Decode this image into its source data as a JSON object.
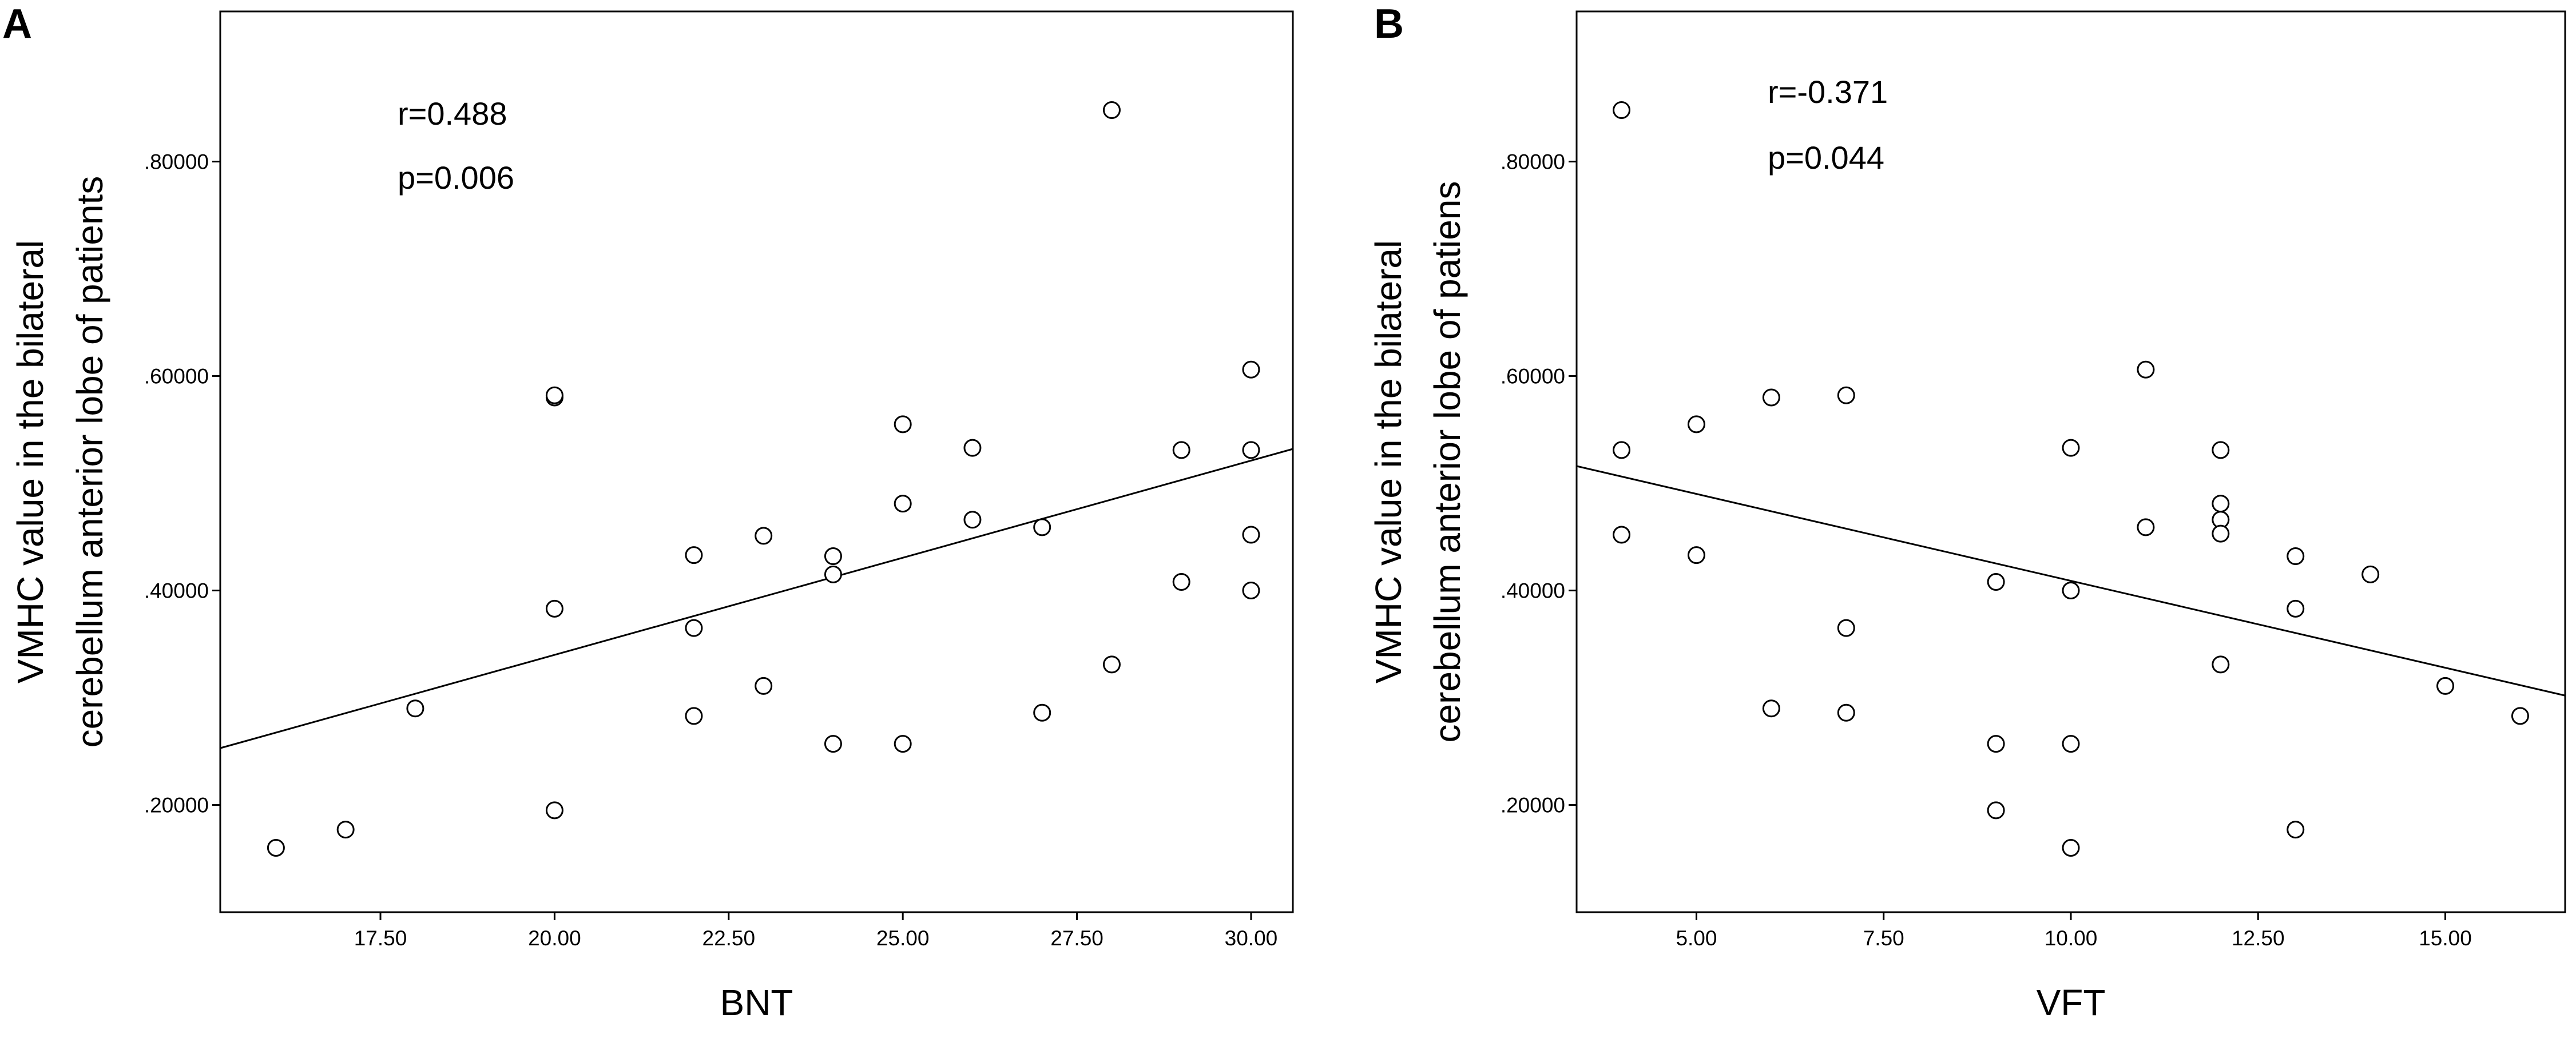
{
  "chart_data": [
    {
      "type": "scatter",
      "panel_label": "A",
      "xlabel": "BNT",
      "ylabel_lines": [
        "VMHC value in the bilateral",
        "cerebellum anterior lobe of patients"
      ],
      "xlim": [
        15.2,
        30.6
      ],
      "ylim": [
        0.1,
        0.94
      ],
      "xticks": [
        17.5,
        20.0,
        22.5,
        25.0,
        27.5,
        30.0
      ],
      "xtick_labels": [
        "17.50",
        "20.00",
        "22.50",
        "25.00",
        "27.50",
        "30.00"
      ],
      "yticks": [
        0.2,
        0.4,
        0.6,
        0.8
      ],
      "ytick_labels": [
        ".20000",
        ".40000",
        ".60000",
        ".80000"
      ],
      "annotations": [
        "r=0.488",
        "p=0.006"
      ],
      "points": [
        [
          16,
          0.16
        ],
        [
          17,
          0.177
        ],
        [
          18,
          0.29
        ],
        [
          20,
          0.58
        ],
        [
          20,
          0.582
        ],
        [
          20,
          0.383
        ],
        [
          20,
          0.195
        ],
        [
          22,
          0.433
        ],
        [
          22,
          0.365
        ],
        [
          22,
          0.283
        ],
        [
          23,
          0.451
        ],
        [
          23,
          0.311
        ],
        [
          24,
          0.432
        ],
        [
          24,
          0.415
        ],
        [
          24,
          0.257
        ],
        [
          25,
          0.555
        ],
        [
          25,
          0.481
        ],
        [
          25,
          0.257
        ],
        [
          26,
          0.533
        ],
        [
          26,
          0.466
        ],
        [
          27,
          0.459
        ],
        [
          27,
          0.286
        ],
        [
          28,
          0.848
        ],
        [
          28,
          0.331
        ],
        [
          29,
          0.531
        ],
        [
          29,
          0.408
        ],
        [
          30,
          0.606
        ],
        [
          30,
          0.531
        ],
        [
          30,
          0.452
        ],
        [
          30,
          0.4
        ]
      ],
      "fit_line": {
        "x": [
          15.2,
          30.6
        ],
        "y": [
          0.253,
          0.532
        ]
      }
    },
    {
      "type": "scatter",
      "panel_label": "B",
      "xlabel": "VFT",
      "ylabel_lines": [
        "VMHC value in the bilateral",
        "cerebellum anterior lobe of patiens"
      ],
      "xlim": [
        3.4,
        16.6
      ],
      "ylim": [
        0.1,
        0.94
      ],
      "xticks": [
        5.0,
        7.5,
        10.0,
        12.5,
        15.0
      ],
      "xtick_labels": [
        "5.00",
        "7.50",
        "10.00",
        "12.50",
        "15.00"
      ],
      "yticks": [
        0.2,
        0.4,
        0.6,
        0.8
      ],
      "ytick_labels": [
        ".20000",
        ".40000",
        ".60000",
        ".80000"
      ],
      "annotations": [
        "r=-0.371",
        "p=0.044"
      ],
      "points": [
        [
          4,
          0.848
        ],
        [
          4,
          0.531
        ],
        [
          4,
          0.452
        ],
        [
          5,
          0.555
        ],
        [
          5,
          0.433
        ],
        [
          6,
          0.58
        ],
        [
          6,
          0.29
        ],
        [
          7,
          0.582
        ],
        [
          7,
          0.365
        ],
        [
          7,
          0.286
        ],
        [
          9,
          0.408
        ],
        [
          9,
          0.257
        ],
        [
          9,
          0.195
        ],
        [
          10,
          0.533
        ],
        [
          10,
          0.4
        ],
        [
          10,
          0.257
        ],
        [
          10,
          0.16
        ],
        [
          11,
          0.606
        ],
        [
          11,
          0.459
        ],
        [
          12,
          0.531
        ],
        [
          12,
          0.481
        ],
        [
          12,
          0.466
        ],
        [
          12,
          0.453
        ],
        [
          12,
          0.331
        ],
        [
          13,
          0.432
        ],
        [
          13,
          0.383
        ],
        [
          13,
          0.177
        ],
        [
          14,
          0.415
        ],
        [
          15,
          0.311
        ],
        [
          16,
          0.283
        ]
      ],
      "fit_line": {
        "x": [
          3.4,
          16.6
        ],
        "y": [
          0.516,
          0.302
        ]
      }
    }
  ]
}
